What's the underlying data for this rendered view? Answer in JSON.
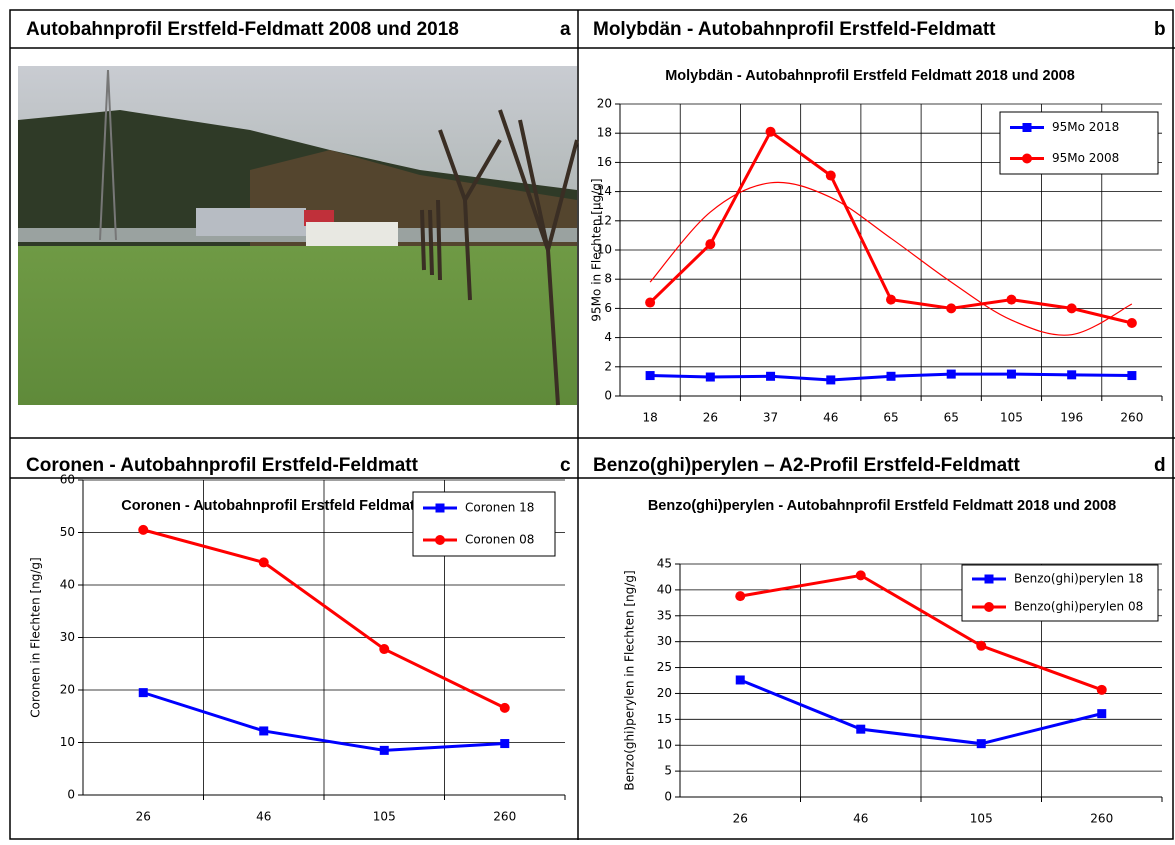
{
  "panels": [
    {
      "heading": "Autobahnprofil Erstfeld-Feldmatt 2008 und 2018",
      "letter": "a"
    },
    {
      "heading": "Molybdän - Autobahnprofil Erstfeld-Feldmatt",
      "letter": "b"
    },
    {
      "heading": "Coronen  - Autobahnprofil Erstfeld-Feldmatt",
      "letter": "c"
    },
    {
      "heading": "Benzo(ghi)perylen – A2-Profil Erstfeld-Feldmatt",
      "letter": "d"
    }
  ],
  "chart_data": [
    {
      "type": "line",
      "title": "Molybdän - Autobahnprofil Erstfeld Feldmatt 2018 und 2008",
      "y_label": "95Mo in Flechten [µg/g]",
      "categories": [
        "18",
        "26",
        "37",
        "46",
        "65",
        "65",
        "105",
        "196",
        "260"
      ],
      "ylim": [
        0,
        20
      ],
      "yticks": [
        0,
        2,
        4,
        6,
        8,
        10,
        12,
        14,
        16,
        18,
        20
      ],
      "grid": true,
      "legend": "upper right",
      "series": [
        {
          "name": "95Mo  2018",
          "color": "#0000ff",
          "marker": "square",
          "values": [
            1.4,
            1.3,
            1.35,
            1.1,
            1.35,
            1.5,
            1.5,
            1.45,
            1.4
          ]
        },
        {
          "name": "95Mo  2008",
          "color": "#ff0000",
          "marker": "circle",
          "values": [
            6.4,
            10.4,
            18.1,
            15.1,
            6.6,
            6.0,
            6.6,
            6.0,
            5.0
          ]
        }
      ],
      "trendline": {
        "color": "#ff0000",
        "values": [
          7.8,
          12.6,
          14.6,
          13.6,
          10.8,
          7.8,
          5.2,
          4.2,
          6.3
        ]
      }
    },
    {
      "type": "line",
      "title": "Coronen - Autobahnprofil Erstfeld Feldmatt 2018 und 2008",
      "y_label": "Coronen in Flechten [ng/g]",
      "categories": [
        "26",
        "46",
        "105",
        "260"
      ],
      "ylim": [
        0,
        60
      ],
      "yticks": [
        0,
        10,
        20,
        30,
        40,
        50,
        60
      ],
      "grid": true,
      "legend": "upper right",
      "series": [
        {
          "name": "Coronen 18",
          "color": "#0000ff",
          "marker": "square",
          "values": [
            19.5,
            12.2,
            8.5,
            9.8
          ]
        },
        {
          "name": "Coronen 08",
          "color": "#ff0000",
          "marker": "circle",
          "values": [
            50.5,
            44.3,
            27.8,
            16.6
          ]
        }
      ]
    },
    {
      "type": "line",
      "title": "Benzo(ghi)perylen - Autobahnprofil Erstfeld Feldmatt 2018 und 2008",
      "y_label": "Benzo(ghi)perylen in Flechten [ng/g]",
      "categories": [
        "26",
        "46",
        "105",
        "260"
      ],
      "ylim": [
        0,
        45
      ],
      "yticks": [
        0,
        5,
        10,
        15,
        20,
        25,
        30,
        35,
        40,
        45
      ],
      "grid": true,
      "legend": "upper right",
      "series": [
        {
          "name": "Benzo(ghi)perylen 18",
          "color": "#0000ff",
          "marker": "square",
          "values": [
            22.6,
            13.1,
            10.3,
            16.1
          ]
        },
        {
          "name": "Benzo(ghi)perylen 08",
          "color": "#ff0000",
          "marker": "circle",
          "values": [
            38.8,
            42.8,
            29.2,
            20.7
          ]
        }
      ]
    }
  ]
}
